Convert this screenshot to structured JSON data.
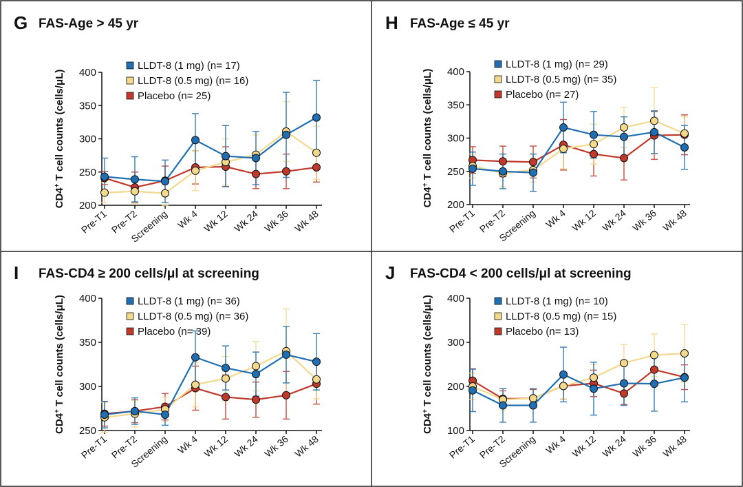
{
  "chart_data": [
    {
      "type": "line",
      "label": "G",
      "title": "FAS-Age > 45 yr",
      "ylabel": [
        "CD4",
        "+",
        " T cell counts (cells/μL)"
      ],
      "categories": [
        "Pre-T1",
        "Pre-T2",
        "Screening",
        "Wk 4",
        "Wk 12",
        "Wk 24",
        "Wk 36",
        "Wk 48"
      ],
      "ylim": [
        200,
        400
      ],
      "yticks": [
        200,
        250,
        300,
        350,
        400
      ],
      "series": [
        {
          "name": "LLDT-8 (1 mg) (n= 17)",
          "color": "#1f6fb2",
          "values": [
            243,
            239,
            236,
            298,
            274,
            271,
            306,
            332
          ],
          "errors": [
            28,
            34,
            32,
            40,
            46,
            40,
            64,
            56
          ]
        },
        {
          "name": "LLDT-8 (0.5 mg) (n= 16)",
          "color": "#f3d98c",
          "values": [
            219,
            221,
            218,
            252,
            265,
            276,
            311,
            279
          ],
          "errors": [
            15,
            18,
            18,
            30,
            35,
            30,
            45,
            40
          ]
        },
        {
          "name": "Placebo (n= 25)",
          "color": "#c0392b",
          "values": [
            241,
            227,
            237,
            257,
            258,
            247,
            251,
            257
          ],
          "errors": [
            10,
            23,
            22,
            25,
            30,
            22,
            26,
            22
          ]
        }
      ]
    },
    {
      "type": "line",
      "label": "H",
      "title": "FAS-Age ≤ 45 yr",
      "ylabel": [
        "CD4",
        "+",
        " T cell counts (cells/μL)"
      ],
      "categories": [
        "Pre-T1",
        "Pre-T2",
        "Screening",
        "Wk 4",
        "Wk 12",
        "Wk 24",
        "Wk 36",
        "Wk 48"
      ],
      "ylim": [
        200,
        400
      ],
      "yticks": [
        200,
        250,
        300,
        350,
        400
      ],
      "series": [
        {
          "name": "LLDT-8 (1 mg) (n= 29)",
          "color": "#1f6fb2",
          "values": [
            254,
            250,
            248,
            316,
            305,
            302,
            309,
            286
          ],
          "errors": [
            25,
            26,
            28,
            38,
            35,
            30,
            32,
            33
          ]
        },
        {
          "name": "LLDT-8 (0.5 mg) (n= 35)",
          "color": "#f3d98c",
          "values": [
            258,
            247,
            252,
            284,
            291,
            316,
            326,
            307
          ],
          "errors": [
            18,
            20,
            18,
            30,
            30,
            30,
            50,
            25
          ]
        },
        {
          "name": "Placebo (n= 27)",
          "color": "#c0392b",
          "values": [
            267,
            265,
            264,
            290,
            276,
            270,
            304,
            305
          ],
          "errors": [
            20,
            23,
            24,
            38,
            33,
            33,
            36,
            30
          ]
        }
      ]
    },
    {
      "type": "line",
      "label": "I",
      "title": "FAS-CD4 ≥ 200 cells/μl at screening",
      "ylabel": [
        "CD4",
        "+",
        " T cell counts (cells/μL)"
      ],
      "categories": [
        "Pre-T1",
        "Pre-T2",
        "Screening",
        "Wk 4",
        "Wk 12",
        "Wk 24",
        "Wk 36",
        "Wk 48"
      ],
      "ylim": [
        250,
        400
      ],
      "yticks": [
        250,
        300,
        350,
        400
      ],
      "series": [
        {
          "name": "LLDT-8 (1 mg) (n= 36)",
          "color": "#1f6fb2",
          "values": [
            268,
            272,
            268,
            333,
            321,
            314,
            336,
            328
          ],
          "errors": [
            15,
            15,
            12,
            30,
            25,
            25,
            32,
            32
          ]
        },
        {
          "name": "LLDT-8 (0.5 mg) (n= 36)",
          "color": "#f3d98c",
          "values": [
            265,
            269,
            274,
            302,
            309,
            323,
            340,
            308
          ],
          "errors": [
            17,
            15,
            14,
            25,
            25,
            28,
            48,
            22
          ]
        },
        {
          "name": "Placebo (n= 39)",
          "color": "#c0392b",
          "values": [
            269,
            272,
            277,
            298,
            288,
            285,
            290,
            303
          ],
          "errors": [
            14,
            13,
            15,
            25,
            25,
            20,
            27,
            23
          ]
        }
      ]
    },
    {
      "type": "line",
      "label": "J",
      "title": "FAS-CD4 < 200 cells/μl at screening",
      "ylabel": [
        "CD4",
        "+",
        " T cell counts (cells/μL)"
      ],
      "categories": [
        "Pre-T1",
        "Pre-T2",
        "Screening",
        "Wk 4",
        "Wk 12",
        "Wk 24",
        "Wk 36",
        "Wk 48"
      ],
      "ylim": [
        100,
        400
      ],
      "yticks": [
        100,
        200,
        300,
        400
      ],
      "series": [
        {
          "name": "LLDT-8 (1 mg) (n= 10)",
          "color": "#1f6fb2",
          "values": [
            191,
            157,
            157,
            227,
            195,
            207,
            206,
            220
          ],
          "errors": [
            48,
            38,
            38,
            62,
            60,
            50,
            62,
            55
          ]
        },
        {
          "name": "LLDT-8 (0.5 mg) (n= 15)",
          "color": "#f3d98c",
          "values": [
            200,
            170,
            173,
            201,
            220,
            253,
            271,
            275
          ],
          "errors": [
            30,
            25,
            22,
            30,
            30,
            42,
            48,
            65
          ]
        },
        {
          "name": "Placebo (n= 13)",
          "color": "#c0392b",
          "values": [
            213,
            172,
            173,
            201,
            207,
            184,
            238,
            221
          ],
          "errors": [
            27,
            18,
            20,
            30,
            30,
            25,
            32,
            28
          ]
        }
      ]
    }
  ]
}
